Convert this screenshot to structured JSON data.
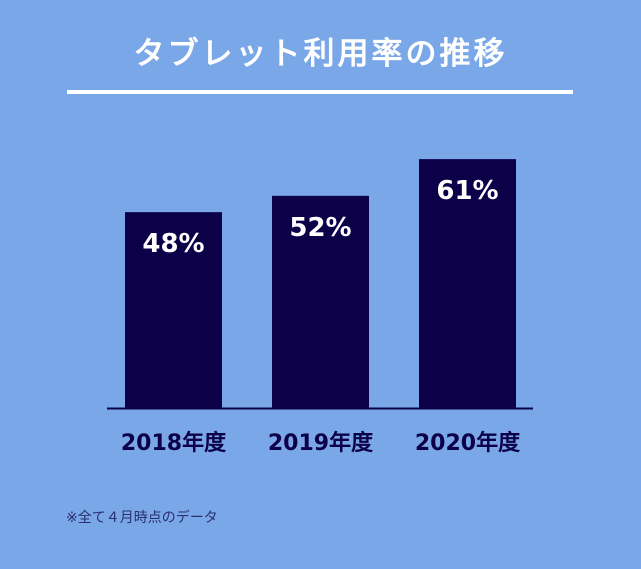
{
  "colors": {
    "background": "#7aa7e8",
    "bar": "#0c0049",
    "title": "#ffffff",
    "label_text": "#0c0049",
    "footnote_text": "#2a2f6e"
  },
  "chart_data": {
    "type": "bar",
    "title": "タブレット利用率の推移",
    "categories": [
      "2018年度",
      "2019年度",
      "2020年度"
    ],
    "values": [
      48,
      52,
      61
    ],
    "data_labels": [
      "48%",
      "52%",
      "61%"
    ],
    "unit": "%",
    "xlabel": "",
    "ylabel": "",
    "ylim": [
      0,
      75
    ],
    "grid": false,
    "legend": "none"
  },
  "footnote": "※全て４月時点のデータ"
}
